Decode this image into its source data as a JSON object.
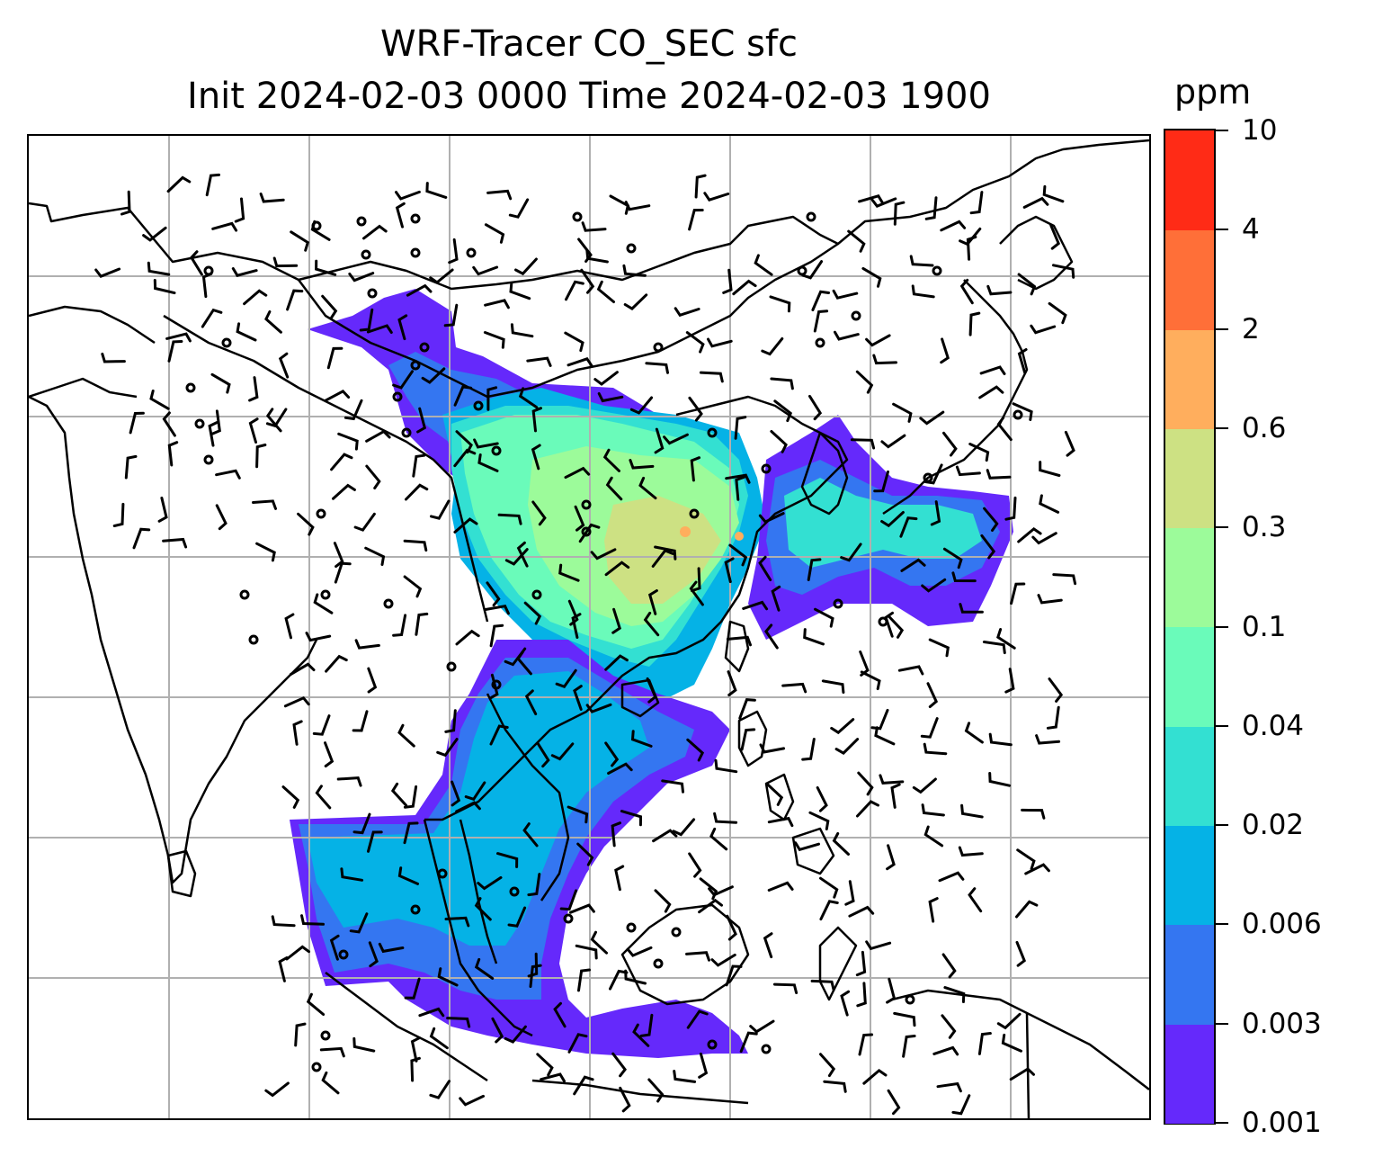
{
  "title": {
    "line1": "WRF-Tracer CO_SEC sfc",
    "line2": "Init 2024-02-03 0000 Time 2024-02-03 1900"
  },
  "colorbar": {
    "unit": "ppm",
    "levels": [
      "0.001",
      "0.003",
      "0.006",
      "0.02",
      "0.04",
      "0.1",
      "0.3",
      "0.6",
      "2",
      "4",
      "10"
    ],
    "colors": [
      "#6529fb",
      "#3476f1",
      "#05b2e6",
      "#33e0d2",
      "#6afbba",
      "#9cfb9a",
      "#cde183",
      "#ffae5d",
      "#ff6f38",
      "#ff2b16"
    ]
  },
  "map": {
    "projection": "lat-lon",
    "gridlines": true,
    "coastlines": true,
    "features": [
      "wind-barbs",
      "calm-wind-circles",
      "tracer-shading"
    ]
  },
  "colors": {
    "gridline": "#b0b0b0",
    "coastline": "#000000",
    "land": "#ffffff"
  }
}
